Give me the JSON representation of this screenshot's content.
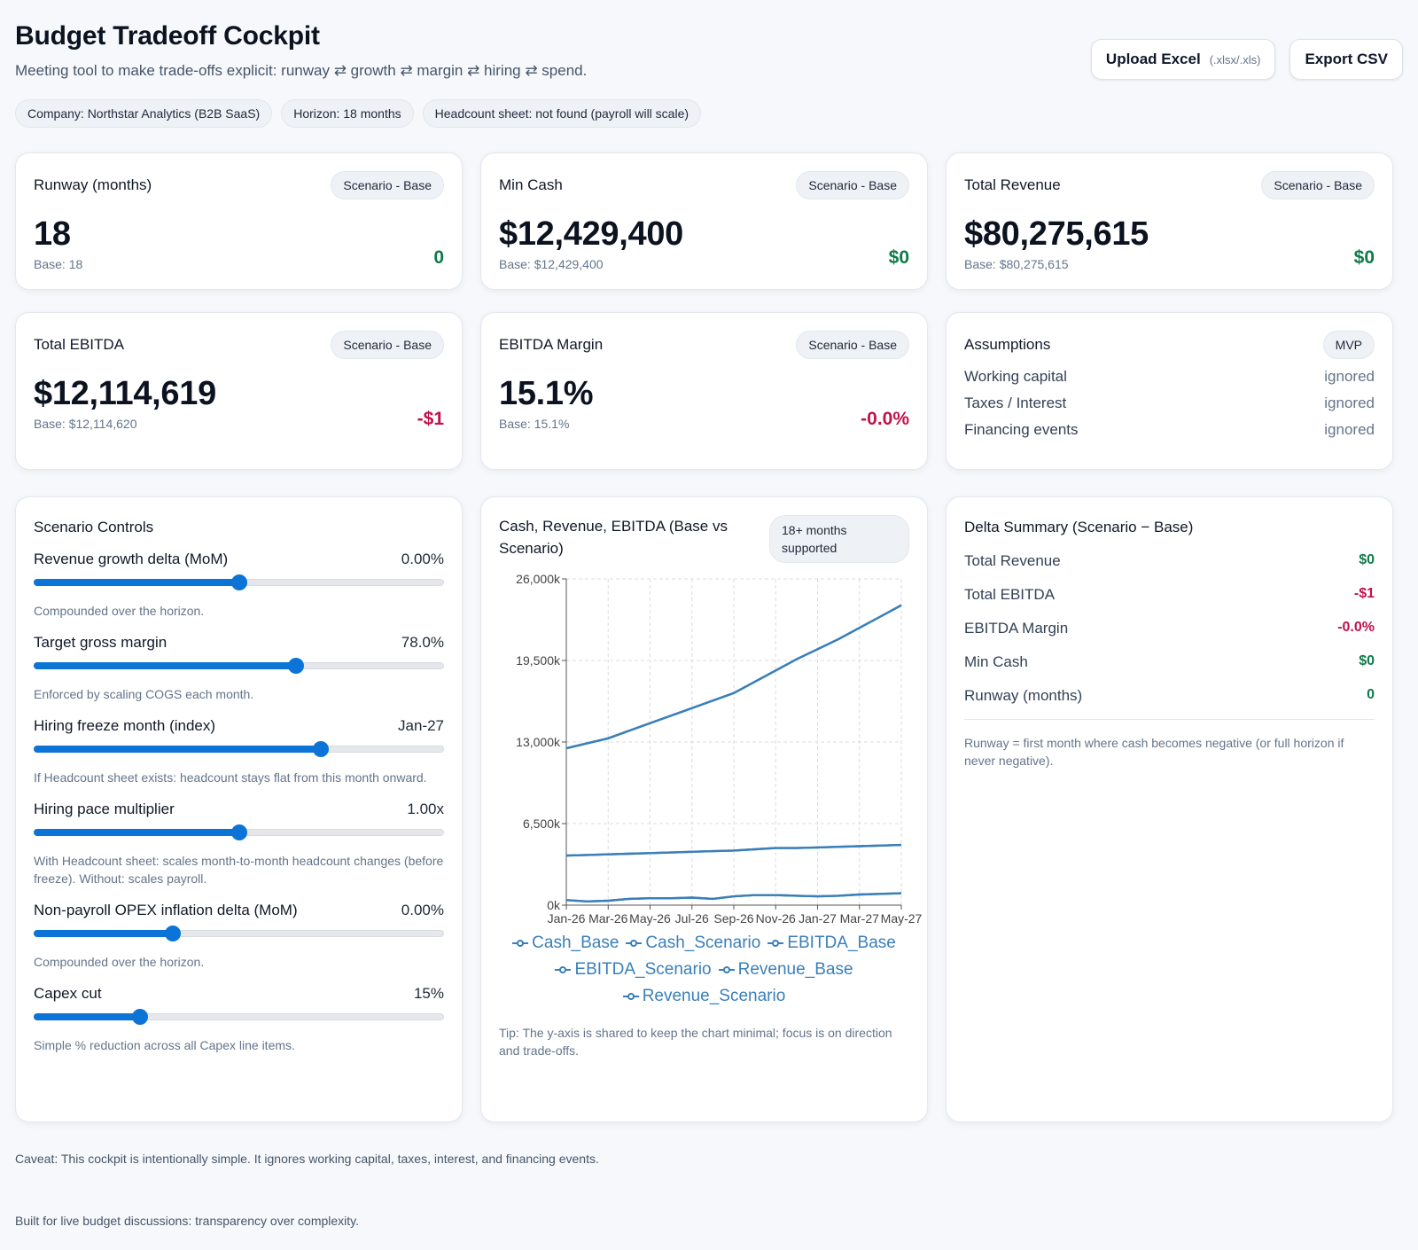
{
  "header": {
    "title": "Budget Tradeoff Cockpit",
    "subtitle": "Meeting tool to make trade-offs explicit: runway ⇄ growth ⇄ margin ⇄ hiring ⇄ spend.",
    "upload_label": "Upload Excel",
    "upload_hint": "(.xlsx/.xls)",
    "export_label": "Export CSV",
    "pills": [
      "Company: Northstar Analytics (B2B SaaS)",
      "Horizon: 18 months",
      "Headcount sheet: not found (payroll will scale)"
    ]
  },
  "kpis": {
    "runway": {
      "label": "Runway (months)",
      "badge": "Scenario - Base",
      "value": "18",
      "base": "Base: 18",
      "delta": "0"
    },
    "min_cash": {
      "label": "Min Cash",
      "badge": "Scenario - Base",
      "value": "$12,429,400",
      "base": "Base: $12,429,400",
      "delta": "$0"
    },
    "total_revenue": {
      "label": "Total Revenue",
      "badge": "Scenario - Base",
      "value": "$80,275,615",
      "base": "Base: $80,275,615",
      "delta": "$0"
    },
    "total_ebitda": {
      "label": "Total EBITDA",
      "badge": "Scenario - Base",
      "value": "$12,114,619",
      "base": "Base: $12,114,620",
      "delta": "-$1"
    },
    "ebitda_margin": {
      "label": "EBITDA Margin",
      "badge": "Scenario - Base",
      "value": "15.1%",
      "base": "Base: 15.1%",
      "delta": "-0.0%"
    }
  },
  "assumptions": {
    "title": "Assumptions",
    "badge": "MVP",
    "rows": [
      {
        "label": "Working capital",
        "value": "ignored"
      },
      {
        "label": "Taxes / Interest",
        "value": "ignored"
      },
      {
        "label": "Financing events",
        "value": "ignored"
      }
    ]
  },
  "controls": {
    "title": "Scenario Controls",
    "items": [
      {
        "label": "Revenue growth delta (MoM)",
        "value": "0.00%",
        "help": "Compounded over the horizon.",
        "level": 0.5
      },
      {
        "label": "Target gross margin",
        "value": "78.0%",
        "help": "Enforced by scaling COGS each month.",
        "level": 0.64
      },
      {
        "label": "Hiring freeze month (index)",
        "value": "Jan-27",
        "help": "If Headcount sheet exists: headcount stays flat from this month onward.",
        "level": 0.7
      },
      {
        "label": "Hiring pace multiplier",
        "value": "1.00x",
        "help": "With Headcount sheet: scales month-to-month headcount changes (before freeze). Without: scales payroll.",
        "level": 0.5
      },
      {
        "label": "Non-payroll OPEX inflation delta (MoM)",
        "value": "0.00%",
        "help": "Compounded over the horizon.",
        "level": 0.34
      },
      {
        "label": "Capex cut",
        "value": "15%",
        "help": "Simple % reduction across all Capex line items.",
        "level": 0.26
      }
    ]
  },
  "chart": {
    "title": "Cash, Revenue, EBITDA (Base vs Scenario)",
    "badge": "18+ months supported",
    "tip": "Tip: The y-axis is shared to keep the chart minimal; focus is on direction and trade-offs."
  },
  "chart_data": {
    "type": "line",
    "x_ticks": [
      "Jan-26",
      "Mar-26",
      "May-26",
      "Jul-26",
      "Sep-26",
      "Nov-26",
      "Jan-27",
      "Mar-27",
      "May-27"
    ],
    "y_ticks": [
      "0k",
      "6,500k",
      "13,000k",
      "19,500k",
      "26,000k"
    ],
    "ylim": [
      0,
      26000
    ],
    "grid": true,
    "legend_position": "bottom",
    "series": [
      {
        "name": "Cash_Base",
        "values": [
          12500,
          12900,
          13300,
          13900,
          14500,
          15100,
          15700,
          16300,
          16900,
          17800,
          18700,
          19600,
          20400,
          21200,
          22100,
          23000,
          23900
        ]
      },
      {
        "name": "Cash_Scenario",
        "values": [
          12500,
          12900,
          13300,
          13900,
          14500,
          15100,
          15700,
          16300,
          16900,
          17800,
          18700,
          19600,
          20400,
          21200,
          22100,
          23000,
          23900
        ]
      },
      {
        "name": "EBITDA_Base",
        "values": [
          400,
          300,
          350,
          500,
          550,
          550,
          600,
          500,
          700,
          800,
          800,
          750,
          700,
          750,
          850,
          900,
          950
        ]
      },
      {
        "name": "EBITDA_Scenario",
        "values": [
          400,
          300,
          350,
          500,
          550,
          550,
          600,
          500,
          700,
          800,
          800,
          750,
          700,
          750,
          850,
          900,
          950
        ]
      },
      {
        "name": "Revenue_Base",
        "values": [
          3950,
          4000,
          4050,
          4100,
          4150,
          4200,
          4250,
          4300,
          4350,
          4450,
          4550,
          4550,
          4600,
          4650,
          4700,
          4750,
          4800
        ]
      },
      {
        "name": "Revenue_Scenario",
        "values": [
          3950,
          4000,
          4050,
          4100,
          4150,
          4200,
          4250,
          4300,
          4350,
          4450,
          4550,
          4550,
          4600,
          4650,
          4700,
          4750,
          4800
        ]
      }
    ],
    "color": "#3a7fb9"
  },
  "delta_summary": {
    "title": "Delta Summary (Scenario − Base)",
    "rows": [
      {
        "label": "Total Revenue",
        "value": "$0",
        "tone": "pos"
      },
      {
        "label": "Total EBITDA",
        "value": "-$1",
        "tone": "neg"
      },
      {
        "label": "EBITDA Margin",
        "value": "-0.0%",
        "tone": "neg"
      },
      {
        "label": "Min Cash",
        "value": "$0",
        "tone": "pos"
      },
      {
        "label": "Runway (months)",
        "value": "0",
        "tone": "pos"
      }
    ],
    "note": "Runway = first month where cash becomes negative (or full horizon if never negative)."
  },
  "footer": {
    "caveat": "Caveat: This cockpit is intentionally simple. It ignores working capital, taxes, interest, and financing events.",
    "built": "Built for live budget discussions: transparency over complexity."
  },
  "colors": {
    "accent": "#0b74d6",
    "positive": "#0f7a4a",
    "negative": "#c0134a"
  }
}
